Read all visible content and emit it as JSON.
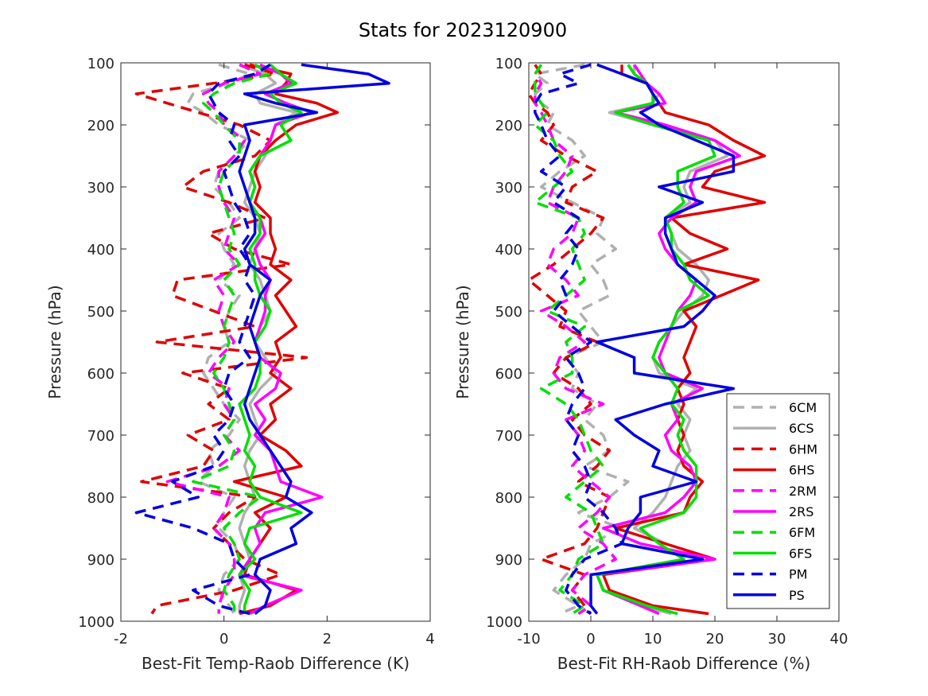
{
  "figure": {
    "title": "Stats for 2023120900"
  },
  "chart_data": [
    {
      "type": "line",
      "xlabel": "Best-Fit Temp-Raob Difference (K)",
      "ylabel": "Pressure (hPa)",
      "xlim": [
        -2,
        4
      ],
      "ylim": [
        100,
        1000
      ],
      "y_reversed": true,
      "xticks": [
        "-2",
        "0",
        "2",
        "4"
      ],
      "yticks": [
        "100",
        "200",
        "300",
        "400",
        "500",
        "600",
        "700",
        "800",
        "900",
        "1000"
      ],
      "y": [
        103,
        118,
        133,
        150,
        165,
        180,
        200,
        225,
        250,
        275,
        300,
        325,
        350,
        375,
        400,
        425,
        450,
        475,
        500,
        525,
        550,
        575,
        600,
        625,
        650,
        675,
        700,
        725,
        750,
        775,
        800,
        825,
        850,
        875,
        900,
        925,
        950,
        975,
        988
      ],
      "series": [
        {
          "name": "6CM",
          "color": "#b0b0b0",
          "style": "dash",
          "x": [
            -0.1,
            0.5,
            0.1,
            -0.6,
            -0.7,
            -0.4,
            -0.1,
            0.5,
            0.2,
            -0.1,
            -0.2,
            0.1,
            0.3,
            -0.1,
            0.0,
            0.2,
            -0.1,
            0.3,
            0.1,
            0.0,
            0.1,
            -0.3,
            -0.4,
            -0.2,
            0.0,
            0.3,
            0.1,
            -0.3,
            -0.2,
            -0.5,
            0.2,
            0.0,
            -0.1,
            0.2,
            0.3,
            0.0,
            -0.1,
            0.1,
            0.2
          ]
        },
        {
          "name": "6CS",
          "color": "#b0b0b0",
          "style": "solid",
          "x": [
            0.3,
            0.8,
            1.0,
            0.6,
            0.7,
            1.4,
            1.0,
            0.9,
            0.8,
            0.6,
            0.5,
            0.4,
            0.6,
            0.7,
            0.6,
            0.5,
            0.7,
            0.8,
            0.9,
            0.7,
            0.6,
            0.8,
            1.0,
            0.7,
            0.5,
            0.6,
            0.7,
            0.5,
            0.4,
            0.5,
            0.6,
            0.4,
            0.3,
            0.4,
            0.5,
            0.3,
            0.4,
            0.3,
            0.3
          ]
        },
        {
          "name": "6HM",
          "color": "#e00000",
          "style": "dash",
          "x": [
            0.4,
            1.0,
            -0.2,
            -1.7,
            -1.1,
            -0.5,
            0.3,
            0.9,
            0.6,
            -0.4,
            -0.8,
            0.1,
            0.8,
            -0.3,
            0.2,
            1.3,
            -0.9,
            -1.0,
            -0.2,
            0.6,
            -1.3,
            1.6,
            -0.8,
            0.1,
            -0.3,
            0.1,
            -0.7,
            -0.2,
            -0.4,
            -1.6,
            0.6,
            0.1,
            -0.2,
            0.1,
            0.4,
            1.1,
            0.2,
            -1.3,
            -1.4
          ]
        },
        {
          "name": "6HS",
          "color": "#e00000",
          "style": "solid",
          "x": [
            0.5,
            1.3,
            1.2,
            1.0,
            1.8,
            2.2,
            1.4,
            1.0,
            0.7,
            0.6,
            0.7,
            0.6,
            0.9,
            0.9,
            1.0,
            0.9,
            1.3,
            1.0,
            1.2,
            1.4,
            1.0,
            1.1,
            0.9,
            1.3,
            0.9,
            1.0,
            0.7,
            1.2,
            1.5,
            0.2,
            1.2,
            0.6,
            0.9,
            0.7,
            0.5,
            0.4,
            1.4,
            0.9,
            0.3
          ]
        },
        {
          "name": "2RM",
          "color": "#ff00ff",
          "style": "dash",
          "x": [
            0.3,
            0.7,
            0.0,
            -0.4,
            -0.3,
            -0.1,
            0.0,
            0.4,
            0.2,
            -0.1,
            -0.1,
            0.0,
            0.2,
            0.1,
            0.0,
            0.3,
            -0.2,
            0.0,
            -0.1,
            0.0,
            0.2,
            -0.1,
            -0.3,
            0.1,
            0.0,
            0.2,
            0.0,
            0.3,
            -0.1,
            -1.1,
            0.1,
            0.0,
            -0.2,
            0.1,
            0.2,
            0.2,
            0.0,
            -0.1,
            -0.1
          ]
        },
        {
          "name": "2RS",
          "color": "#ff00ff",
          "style": "solid",
          "x": [
            0.7,
            1.1,
            1.3,
            0.8,
            1.2,
            1.7,
            1.0,
            0.9,
            0.7,
            0.5,
            0.6,
            0.5,
            0.7,
            0.8,
            0.6,
            0.7,
            0.9,
            0.8,
            0.8,
            0.7,
            0.6,
            0.7,
            1.1,
            1.0,
            0.6,
            0.8,
            0.6,
            0.9,
            1.0,
            1.1,
            1.9,
            0.8,
            0.6,
            0.7,
            0.5,
            0.3,
            1.5,
            0.8,
            0.5
          ]
        },
        {
          "name": "6FM",
          "color": "#00e000",
          "style": "dash",
          "x": [
            0.6,
            0.9,
            0.2,
            -0.2,
            -0.4,
            -0.2,
            0.0,
            0.3,
            0.3,
            0.0,
            -0.1,
            0.0,
            0.1,
            0.2,
            0.1,
            0.3,
            0.0,
            0.2,
            0.1,
            0.0,
            0.1,
            0.0,
            -0.2,
            0.0,
            0.1,
            0.2,
            0.0,
            0.2,
            0.1,
            -0.6,
            0.7,
            0.3,
            0.0,
            0.2,
            0.3,
            0.1,
            0.0,
            0.2,
            0.2
          ]
        },
        {
          "name": "6FS",
          "color": "#00e000",
          "style": "solid",
          "x": [
            0.9,
            1.1,
            1.4,
            0.9,
            1.1,
            1.5,
            1.1,
            1.3,
            0.7,
            0.5,
            0.6,
            0.5,
            0.7,
            0.7,
            0.5,
            0.6,
            0.6,
            0.7,
            0.9,
            0.8,
            0.6,
            0.7,
            0.7,
            0.6,
            0.3,
            0.4,
            0.5,
            0.4,
            0.6,
            0.5,
            0.7,
            1.5,
            0.5,
            0.4,
            0.6,
            0.3,
            0.5,
            0.4,
            0.4
          ]
        },
        {
          "name": "PM",
          "color": "#0000e0",
          "style": "dash",
          "x": [
            0.9,
            0.6,
            -0.1,
            -0.3,
            -0.2,
            -0.1,
            0.2,
            0.1,
            0.3,
            0.0,
            0.1,
            0.2,
            0.4,
            0.5,
            0.3,
            0.5,
            0.4,
            0.6,
            0.5,
            0.4,
            0.3,
            0.5,
            0.1,
            0.0,
            0.2,
            0.1,
            -0.2,
            0.0,
            -0.2,
            -1.0,
            -0.5,
            -1.7,
            -0.6,
            0.1,
            0.2,
            0.5,
            -0.6,
            -0.1,
            0.5
          ]
        },
        {
          "name": "PS",
          "color": "#0000e0",
          "style": "solid",
          "x": [
            1.5,
            2.8,
            3.2,
            0.4,
            1.0,
            1.8,
            0.4,
            0.5,
            0.4,
            0.3,
            0.4,
            0.5,
            0.6,
            0.6,
            0.4,
            0.5,
            0.9,
            0.7,
            0.6,
            0.5,
            0.6,
            0.7,
            0.6,
            0.5,
            0.4,
            0.5,
            0.7,
            0.9,
            1.1,
            1.3,
            1.2,
            1.7,
            1.3,
            1.4,
            0.7,
            0.6,
            0.9,
            0.8,
            0.6
          ]
        }
      ]
    },
    {
      "type": "line",
      "xlabel": "Best-Fit RH-Raob Difference (%)",
      "ylabel": "Pressure (hPa)",
      "xlim": [
        -10,
        40
      ],
      "ylim": [
        100,
        1000
      ],
      "y_reversed": true,
      "xticks": [
        "-10",
        "0",
        "10",
        "20",
        "30",
        "40"
      ],
      "yticks": [
        "100",
        "200",
        "300",
        "400",
        "500",
        "600",
        "700",
        "800",
        "900",
        "1000"
      ],
      "legend": {
        "location": "lower-right",
        "entries": [
          "6CM",
          "6CS",
          "6HM",
          "6HS",
          "2RM",
          "2RS",
          "6FM",
          "6FS",
          "PM",
          "PS"
        ]
      },
      "y": [
        103,
        118,
        133,
        150,
        165,
        180,
        200,
        225,
        250,
        275,
        300,
        325,
        350,
        375,
        400,
        425,
        450,
        475,
        500,
        525,
        550,
        575,
        600,
        625,
        650,
        675,
        700,
        725,
        750,
        775,
        800,
        825,
        850,
        875,
        900,
        925,
        950,
        975,
        988
      ],
      "series": [
        {
          "name": "6CM",
          "color": "#b0b0b0",
          "style": "dash",
          "x": [
            -1,
            -9,
            -7,
            -9,
            -8,
            -6,
            -7,
            -3,
            -1,
            -5,
            -8,
            -3,
            2,
            1,
            4,
            0,
            2,
            3,
            -2,
            0,
            2,
            -4,
            -2,
            -3,
            1,
            -1,
            2,
            3,
            -1,
            6,
            3,
            -2,
            5,
            0,
            -1,
            -4,
            -6,
            -2,
            -5
          ]
        },
        {
          "name": "6CS",
          "color": "#b0b0b0",
          "style": "solid",
          "x": [
            7,
            7,
            9,
            11,
            10,
            3,
            10,
            20,
            22,
            16,
            15,
            16,
            12,
            13,
            14,
            17,
            19,
            18,
            15,
            13,
            11,
            10,
            11,
            17,
            14,
            16,
            15,
            16,
            14,
            13,
            12,
            10,
            7,
            12,
            20,
            1,
            2,
            8,
            13
          ]
        },
        {
          "name": "6HM",
          "color": "#e00000",
          "style": "dash",
          "x": [
            -9,
            -8,
            -9,
            -10,
            -9,
            -7,
            -6,
            -8,
            -4,
            1,
            -3,
            -4,
            2,
            0,
            -3,
            -6,
            -10,
            -7,
            -4,
            -5,
            1,
            -4,
            -6,
            -2,
            0,
            -3,
            -1,
            3,
            1,
            -2,
            3,
            2,
            1,
            -1,
            -8,
            -1,
            -3,
            -1,
            0
          ]
        },
        {
          "name": "6HS",
          "color": "#e00000",
          "style": "solid",
          "x": [
            5,
            5,
            9,
            10,
            11,
            12,
            19,
            23,
            28,
            20,
            18,
            28,
            13,
            16,
            22,
            15,
            27,
            21,
            15,
            17,
            16,
            15,
            16,
            14,
            15,
            14,
            15,
            14,
            15,
            18,
            16,
            15,
            4,
            12,
            20,
            2,
            3,
            10,
            19
          ]
        },
        {
          "name": "2RM",
          "color": "#ff00ff",
          "style": "dash",
          "x": [
            -8,
            -9,
            -8,
            -9,
            -9,
            -8,
            -7,
            -6,
            -3,
            -4,
            -6,
            -7,
            -2,
            -3,
            -6,
            -7,
            -4,
            -2,
            -8,
            -4,
            -1,
            -5,
            -6,
            -4,
            2,
            -4,
            -2,
            -1,
            -3,
            0,
            3,
            1,
            -2,
            2,
            4,
            -1,
            -3,
            0,
            -2
          ]
        },
        {
          "name": "2RS",
          "color": "#ff00ff",
          "style": "solid",
          "x": [
            7,
            8,
            9,
            11,
            12,
            4,
            12,
            20,
            24,
            17,
            16,
            17,
            13,
            11,
            12,
            14,
            17,
            16,
            14,
            13,
            12,
            11,
            12,
            18,
            13,
            14,
            12,
            13,
            16,
            17,
            15,
            12,
            2,
            8,
            20,
            1,
            2,
            8,
            11
          ]
        },
        {
          "name": "6FM",
          "color": "#00e000",
          "style": "dash",
          "x": [
            -8,
            -9,
            -9,
            -9,
            -8,
            -7,
            -9,
            -6,
            -5,
            -3,
            -6,
            -9,
            -2,
            -1,
            -3,
            -2,
            -1,
            -4,
            -7,
            -1,
            -4,
            -3,
            -3,
            -8,
            -4,
            -2,
            -1,
            0,
            2,
            -1,
            -4,
            0,
            1,
            2,
            -2,
            -3,
            -5,
            -1,
            -3
          ]
        },
        {
          "name": "6FS",
          "color": "#00e000",
          "style": "solid",
          "x": [
            6,
            7,
            9,
            10,
            10,
            4,
            10,
            19,
            20,
            14,
            14,
            15,
            12,
            13,
            13,
            15,
            16,
            19,
            14,
            13,
            11,
            10,
            12,
            14,
            13,
            15,
            14,
            15,
            17,
            17,
            17,
            15,
            8,
            11,
            15,
            1,
            2,
            9,
            14
          ]
        },
        {
          "name": "PM",
          "color": "#0000e0",
          "style": "dash",
          "x": [
            0,
            -5,
            -2,
            -8,
            -9,
            -9,
            -8,
            -7,
            -5,
            -8,
            -4,
            -6,
            -2,
            -4,
            -2,
            -3,
            -5,
            -4,
            -6,
            -3,
            0,
            -4,
            -2,
            -1,
            -3,
            -4,
            -2,
            -3,
            -1,
            0,
            -1,
            2,
            4,
            5,
            -1,
            -3,
            -4,
            -2,
            0
          ]
        },
        {
          "name": "PS",
          "color": "#0000e0",
          "style": "solid",
          "x": [
            1,
            5,
            9,
            10,
            11,
            8,
            11,
            17,
            23,
            23,
            11,
            18,
            12,
            12,
            13,
            14,
            17,
            20,
            18,
            15,
            1,
            7,
            7,
            23,
            12,
            4,
            7,
            11,
            10,
            17,
            8,
            8,
            6,
            5,
            18,
            0,
            0,
            0,
            1
          ]
        }
      ]
    }
  ]
}
